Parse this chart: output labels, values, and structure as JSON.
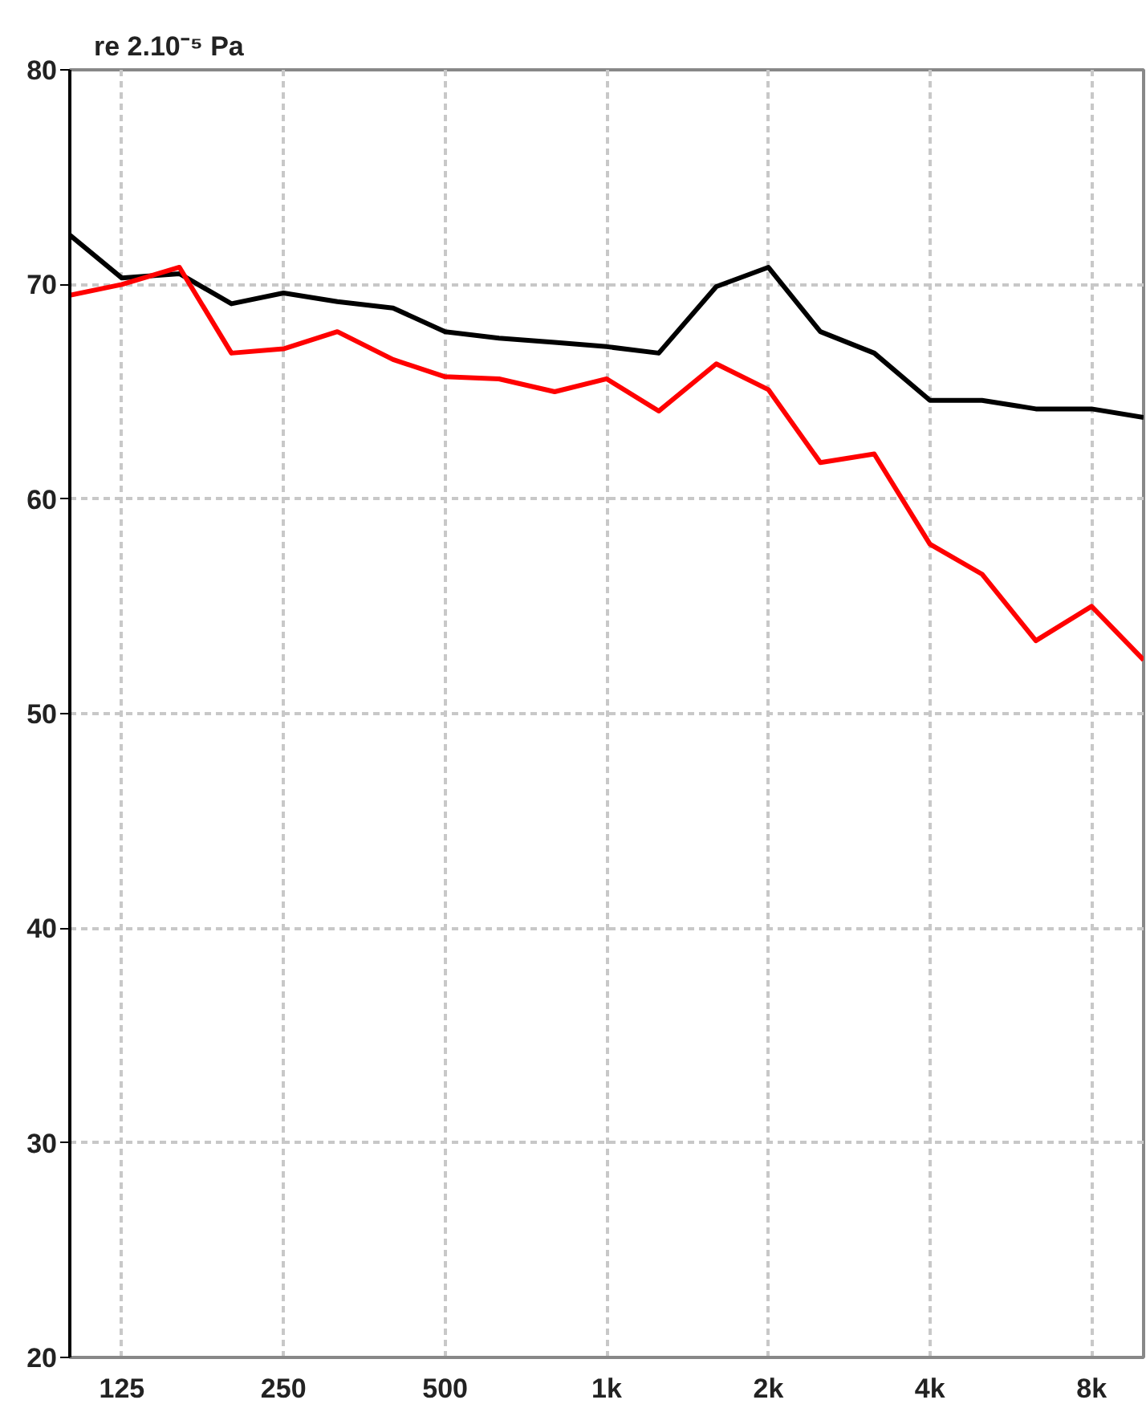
{
  "chart_data": {
    "type": "line",
    "ylabel": "re 2.10⁻⁵ Pa",
    "x": [
      100,
      125,
      160,
      200,
      250,
      315,
      400,
      500,
      630,
      800,
      1000,
      1250,
      1600,
      2000,
      2500,
      3150,
      4000,
      5000,
      6300,
      8000,
      10000
    ],
    "series": [
      {
        "color": "#000000",
        "values": [
          72.3,
          70.3,
          70.5,
          69.1,
          69.6,
          69.2,
          68.9,
          67.8,
          67.5,
          67.3,
          67.1,
          66.8,
          69.9,
          70.8,
          67.8,
          66.8,
          64.6,
          64.6,
          64.2,
          64.2,
          63.8
        ]
      },
      {
        "color": "#ff0000",
        "values": [
          69.5,
          70.0,
          70.8,
          66.8,
          67.0,
          67.8,
          66.5,
          65.7,
          65.6,
          65.0,
          65.6,
          64.1,
          66.3,
          65.1,
          61.7,
          62.1,
          57.9,
          56.5,
          53.4,
          55.0,
          52.5
        ]
      }
    ],
    "log": "x",
    "xlim": [
      100,
      10000
    ],
    "ylim": [
      20,
      80
    ],
    "xticks": [
      125,
      250,
      500,
      {
        "value": 1000,
        "label": "1k"
      },
      {
        "value": 2000,
        "label": "2k"
      },
      {
        "value": 4000,
        "label": "4k"
      },
      {
        "value": 8000,
        "label": "8k"
      }
    ],
    "yticks": [
      20,
      30,
      40,
      50,
      60,
      70,
      80
    ],
    "grid": true,
    "line_style": "solid"
  }
}
